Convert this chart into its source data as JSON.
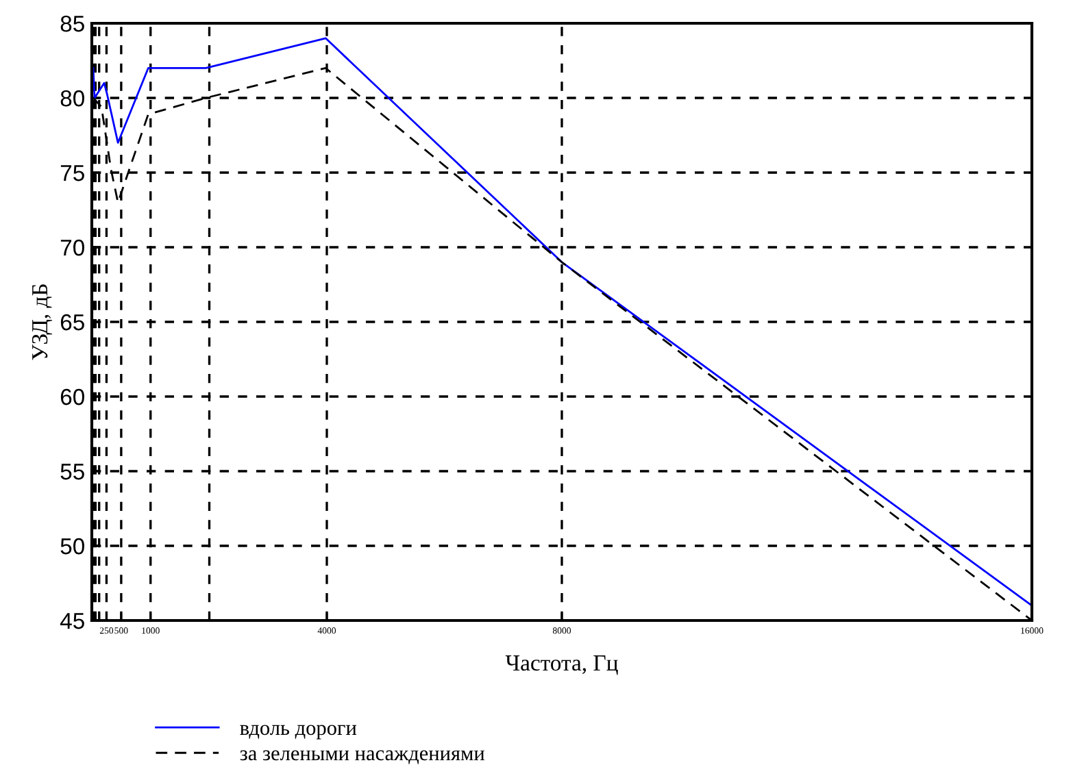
{
  "chart_data": {
    "type": "line",
    "xlabel": "Частота, Гц",
    "ylabel": "УЗД, дБ",
    "series": [
      {
        "name": "вдоль дороги",
        "color": "#0000ff",
        "line_style": "solid",
        "x": [
          24,
          47,
          210,
          257,
          445,
          960,
          1940,
          3980,
          8000,
          16000
        ],
        "values": [
          82,
          80,
          81,
          80.3,
          77,
          82,
          82,
          84,
          69,
          46
        ]
      },
      {
        "name": "за зелеными насаждениями",
        "color": "#000000",
        "line_style": "dashed",
        "x": [
          24,
          164,
          327,
          445,
          960,
          1940,
          3980,
          8000,
          16000
        ],
        "values": [
          80,
          79.4,
          75.2,
          73,
          78.9,
          80,
          82,
          69,
          45
        ]
      }
    ],
    "xlim": [
      0,
      16000
    ],
    "ylim": [
      45,
      85
    ],
    "xticks": [
      {
        "value": 31.5,
        "label": null
      },
      {
        "value": 63,
        "label": null
      },
      {
        "value": 125,
        "label": null
      },
      250,
      500,
      1000,
      {
        "value": 2000,
        "label": null
      },
      4000,
      8000,
      16000
    ],
    "yticks": [
      45,
      50,
      55,
      60,
      65,
      70,
      75,
      80,
      85
    ],
    "grid": true,
    "legend": "bottom left",
    "marker": "none"
  }
}
